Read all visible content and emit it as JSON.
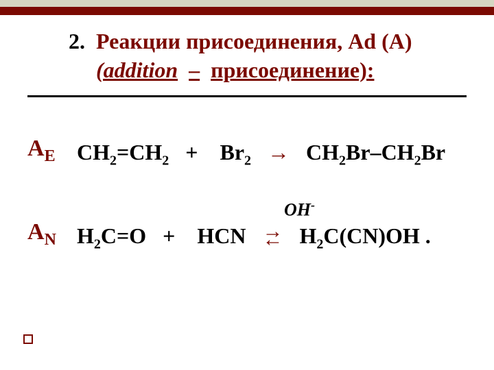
{
  "colors": {
    "accent": "#7b0a02",
    "bar_bg": "#d6d6c2",
    "text": "#000000",
    "background": "#ffffff"
  },
  "header": {
    "number": "2.",
    "title_main": "Реакции присоединения, Ad (A)",
    "subtitle_italic": "(addition",
    "subtitle_dash": "–",
    "subtitle_rest": "присоединение):"
  },
  "reactions": [
    {
      "label_main": "А",
      "label_sub": "E",
      "lhs_a": "СН",
      "lhs_a_sub1": "2",
      "lhs_a_mid": "=СН",
      "lhs_a_sub2": "2",
      "plus": "+",
      "lhs_b": "Br",
      "lhs_b_sub": "2",
      "arrow": "→",
      "rhs_a": "CH",
      "rhs_a_sub1": "2",
      "rhs_a_mid": "Br–CH",
      "rhs_a_sub2": "2",
      "rhs_a_end": "Br"
    },
    {
      "label_main": "А",
      "label_sub": "N",
      "catalyst": "OH",
      "catalyst_sup": "-",
      "lhs_a": "Н",
      "lhs_a_sub1": "2",
      "lhs_a_mid": "С=О",
      "plus": "+",
      "lhs_b": "HCN",
      "arrow_top": "→",
      "arrow_bot": "←",
      "rhs_a": "H",
      "rhs_a_sub1": "2",
      "rhs_a_mid": "C(CN)OH ."
    }
  ]
}
